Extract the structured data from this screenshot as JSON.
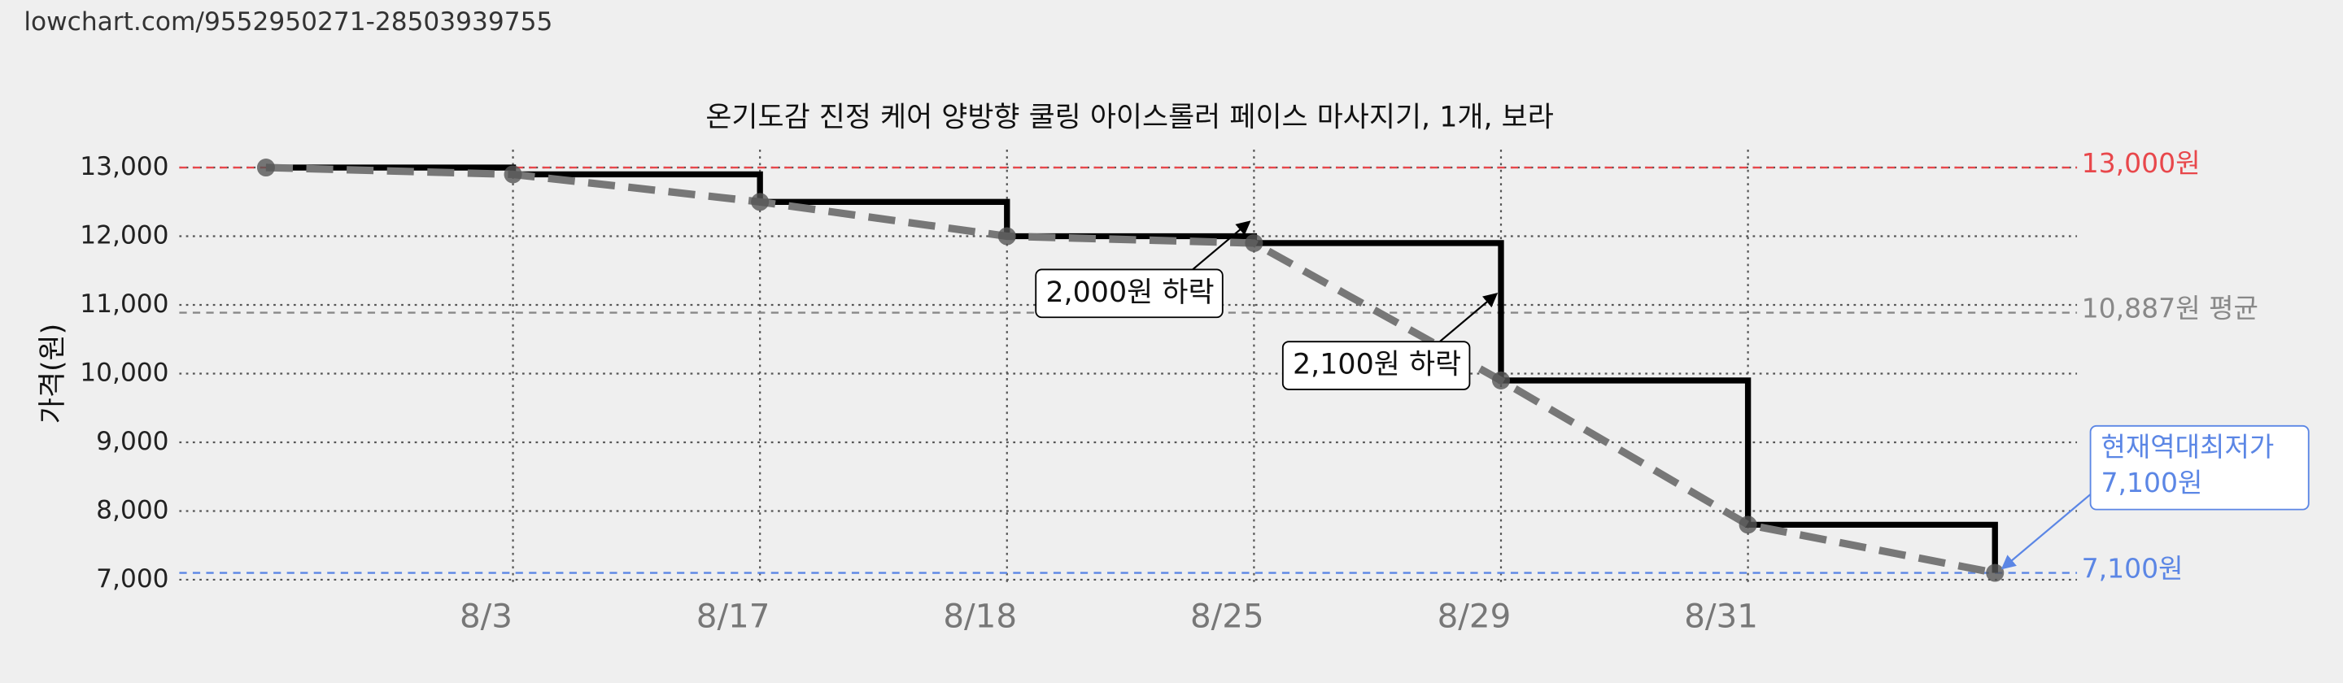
{
  "page_url": "lowchart.com/9552950271-28503939755",
  "chart_data": {
    "type": "line",
    "title": "온기도감 진정 케어 양방향 쿨링 아이스롤러 페이스 마사지기, 1개, 보라",
    "y_label": "가격(원)",
    "categories": [
      null,
      "8/3",
      "8/17",
      "8/18",
      "8/25",
      "8/29",
      "8/31",
      null
    ],
    "values": [
      13000,
      12900,
      12500,
      12000,
      11900,
      9900,
      7800,
      7100
    ],
    "color": "#000000",
    "trend_color": "#777777",
    "ylim": [
      7000,
      13000
    ],
    "yticks": [
      {
        "value": 7000,
        "label": "7,000"
      },
      {
        "value": 8000,
        "label": "8,000"
      },
      {
        "value": 9000,
        "label": "9,000"
      },
      {
        "value": 10000,
        "label": "10,000"
      },
      {
        "value": 11000,
        "label": "11,000"
      },
      {
        "value": 12000,
        "label": "12,000"
      },
      {
        "value": 13000,
        "label": "13,000"
      }
    ],
    "grid": true,
    "reference_lines": [
      {
        "value": 13000,
        "label": "13,000원",
        "color": "#e8474b"
      },
      {
        "value": 10887,
        "label": "10,887원 평균",
        "color": "#888888"
      },
      {
        "value": 7100,
        "label": "7,100원",
        "color": "#5b86e5"
      }
    ],
    "annotations": [
      {
        "text": "2,000원 하락",
        "index": 4
      },
      {
        "text": "2,100원 하락",
        "index": 5
      }
    ],
    "callout": {
      "lines": [
        "현재역대최저가",
        "7,100원"
      ],
      "index": 7
    }
  }
}
